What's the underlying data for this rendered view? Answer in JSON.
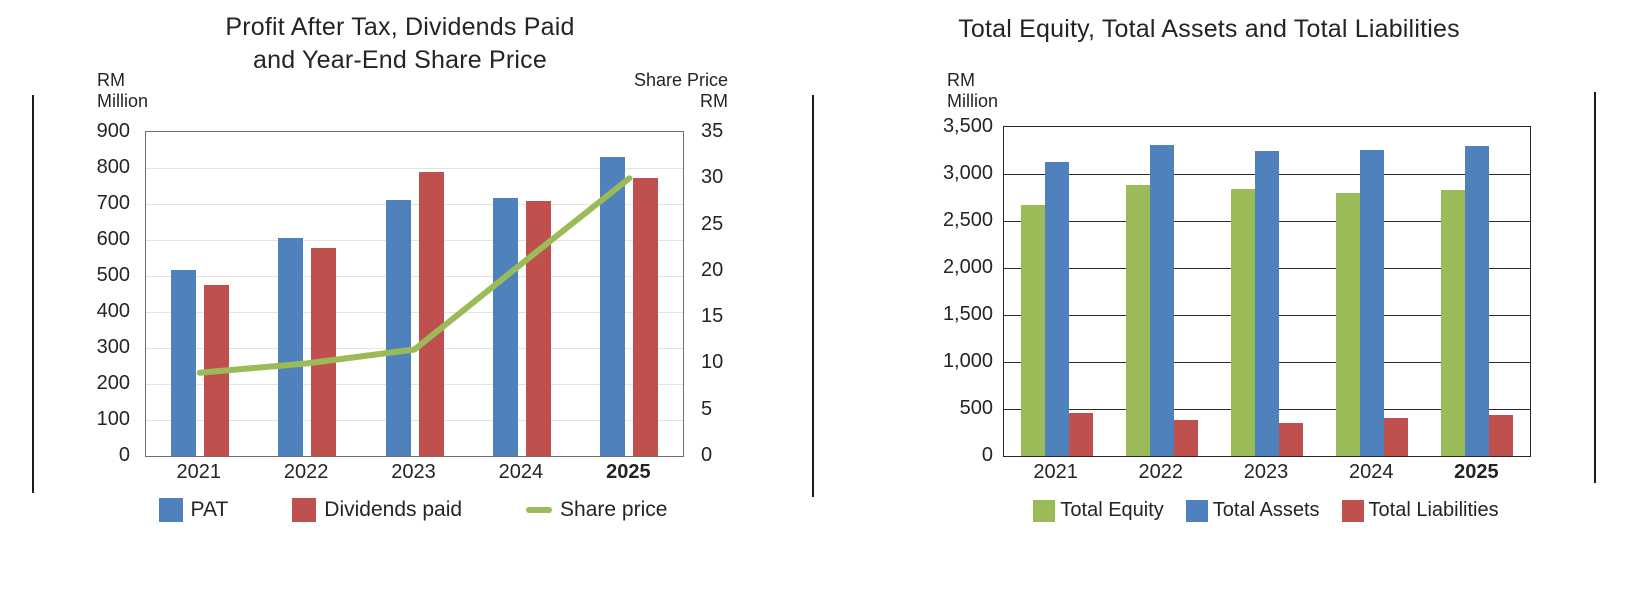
{
  "page": {
    "background": "#ffffff",
    "text_color": "#272324"
  },
  "chart_data": [
    {
      "id": "pat-dividends-share-price",
      "type": "bar",
      "title_lines": [
        "Profit After Tax, Dividends Paid",
        "and Year-End Share Price"
      ],
      "categories": [
        "2021",
        "2022",
        "2023",
        "2024",
        "2025"
      ],
      "series": [
        {
          "name": "PAT",
          "kind": "bar",
          "color": "#4F81BD",
          "axis": "left",
          "values": [
            518,
            605,
            710,
            717,
            830
          ]
        },
        {
          "name": "Dividends paid",
          "kind": "bar",
          "color": "#C0504D",
          "axis": "left",
          "values": [
            474,
            579,
            788,
            707,
            773
          ]
        },
        {
          "name": "Share price",
          "kind": "line",
          "color": "#9BBB59",
          "axis": "right",
          "values": [
            9,
            10,
            11.5,
            20.8,
            30
          ]
        }
      ],
      "left_axis": {
        "unit_lines": [
          "RM",
          "Million"
        ],
        "min": 0,
        "max": 900,
        "step": 100,
        "ticks": [
          "900",
          "800",
          "700",
          "600",
          "500",
          "400",
          "300",
          "200",
          "100",
          "0"
        ]
      },
      "right_axis": {
        "unit_lines": [
          "Share Price",
          "RM"
        ],
        "min": 0,
        "max": 35,
        "step": 5,
        "ticks": [
          "35",
          "30",
          "25",
          "20",
          "15",
          "10",
          "5",
          "0"
        ]
      },
      "grid": "horizontal light gray",
      "legend_position": "bottom",
      "last_category_bold": true
    },
    {
      "id": "equity-assets-liabilities",
      "type": "bar",
      "title_lines": [
        "Total Equity, Total Assets and Total Liabilities"
      ],
      "categories": [
        "2021",
        "2022",
        "2023",
        "2024",
        "2025"
      ],
      "series": [
        {
          "name": "Total Equity",
          "kind": "bar",
          "color": "#9BBB59",
          "values": [
            2670,
            2885,
            2845,
            2800,
            2830
          ]
        },
        {
          "name": "Total Assets",
          "kind": "bar",
          "color": "#4F81BD",
          "values": [
            3130,
            3305,
            3245,
            3255,
            3300
          ]
        },
        {
          "name": "Total Liabilities",
          "kind": "bar",
          "color": "#C0504D",
          "values": [
            460,
            380,
            355,
            400,
            435
          ]
        }
      ],
      "y_axis": {
        "unit_lines": [
          "RM",
          "Million"
        ],
        "min": 0,
        "max": 3500,
        "step": 500,
        "ticks": [
          "3,500",
          "3,000",
          "2,500",
          "2,000",
          "1,500",
          "1,000",
          "500",
          "0"
        ]
      },
      "grid": "horizontal dark",
      "legend_position": "bottom",
      "last_category_bold": true
    }
  ]
}
